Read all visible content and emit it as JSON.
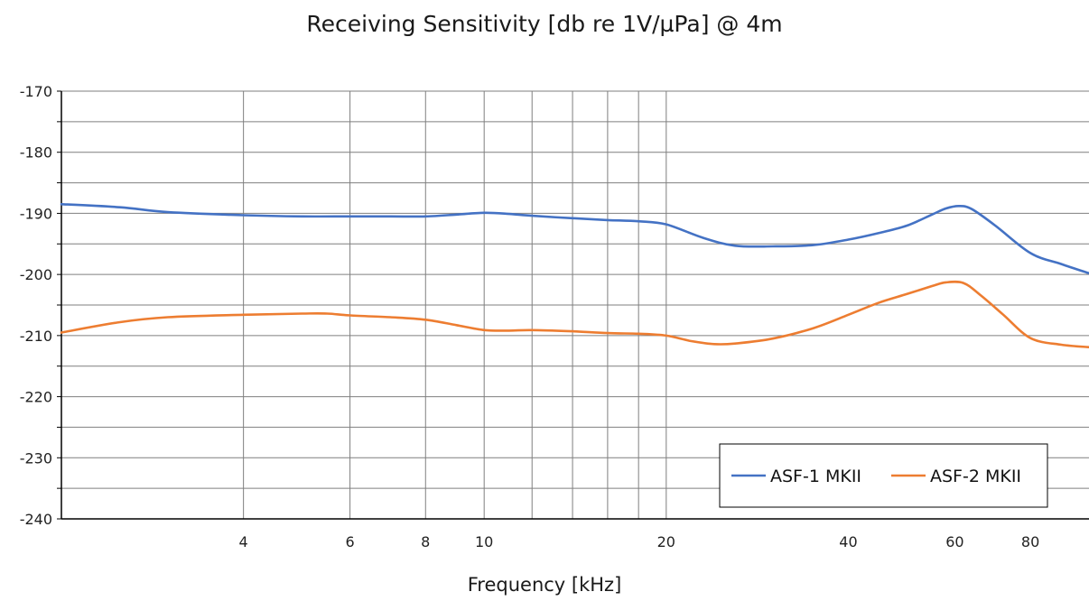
{
  "chart_data": {
    "type": "line",
    "title": "Receiving Sensitivity [db re 1V/µPa] @ 4m",
    "xlabel": "Frequency [kHz]",
    "ylabel": "",
    "xscale": "log",
    "xlim": [
      2,
      100
    ],
    "ylim": [
      -240,
      -170
    ],
    "y_ticks": [
      -170,
      -180,
      -190,
      -200,
      -210,
      -220,
      -230,
      -240
    ],
    "x_tick_labels": [
      4,
      6,
      8,
      10,
      20,
      40,
      60,
      80
    ],
    "x_gridlines": [
      4,
      6,
      8,
      10,
      12,
      14,
      16,
      18,
      20
    ],
    "grid": true,
    "legend_position": "bottom-right",
    "series": [
      {
        "name": "ASF-1 MKII",
        "color": "#4472c4",
        "x": [
          2,
          2.5,
          3,
          4,
          5,
          6,
          7,
          8,
          9,
          10,
          11,
          12,
          14,
          16,
          18,
          20,
          23,
          26,
          30,
          35,
          40,
          45,
          50,
          55,
          58,
          61,
          64,
          70,
          80,
          90,
          100
        ],
        "y": [
          -188.5,
          -189,
          -189.8,
          -190.3,
          -190.5,
          -190.5,
          -190.5,
          -190.5,
          -190.2,
          -189.9,
          -190.1,
          -190.4,
          -190.8,
          -191.1,
          -191.3,
          -191.8,
          -194,
          -195.3,
          -195.4,
          -195.2,
          -194.3,
          -193.2,
          -192,
          -190.2,
          -189.2,
          -188.8,
          -189.3,
          -192,
          -196.5,
          -198.3,
          -199.8
        ]
      },
      {
        "name": "ASF-2 MKII",
        "color": "#ed7d31",
        "x": [
          2,
          2.5,
          3,
          4,
          5,
          5.5,
          6,
          7,
          8,
          9,
          10,
          11,
          12,
          14,
          16,
          18,
          20,
          22,
          24,
          26,
          30,
          35,
          40,
          45,
          50,
          55,
          58,
          62,
          66,
          72,
          80,
          90,
          100
        ],
        "y": [
          -209.5,
          -207.8,
          -207,
          -206.6,
          -206.4,
          -206.4,
          -206.7,
          -207,
          -207.4,
          -208.3,
          -209.1,
          -209.2,
          -209.1,
          -209.3,
          -209.6,
          -209.7,
          -210,
          -210.9,
          -211.4,
          -211.3,
          -210.5,
          -208.8,
          -206.6,
          -204.6,
          -203.2,
          -201.9,
          -201.3,
          -201.4,
          -203.3,
          -206.5,
          -210.4,
          -211.5,
          -211.9
        ]
      }
    ]
  }
}
